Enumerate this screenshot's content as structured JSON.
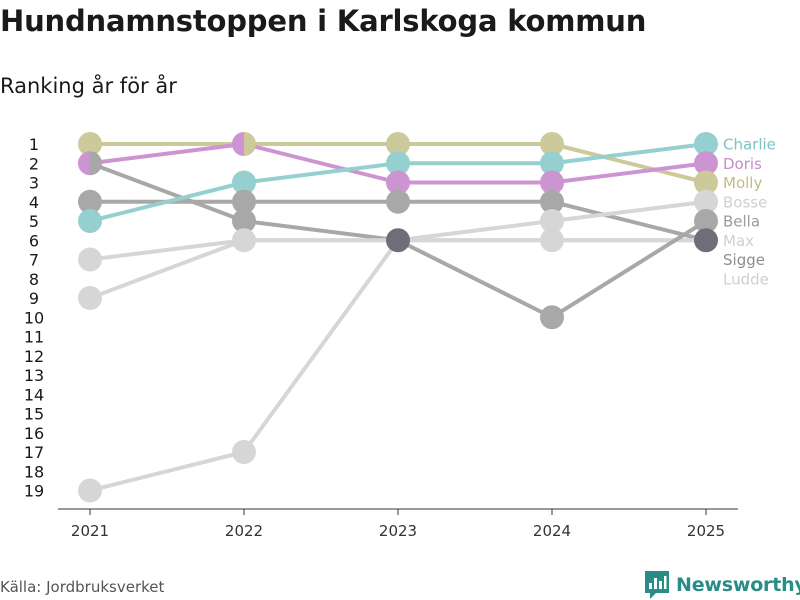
{
  "title": "Hundnamnstoppen i Karlskoga kommun",
  "subtitle": "Ranking år för år",
  "source": "Källa: Jordbruksverket",
  "brand": {
    "name": "Newsworthy",
    "icon": "newsworthy-logo-icon",
    "color": "#2a8c86"
  },
  "chart_data": {
    "type": "line",
    "chart_style": "bump chart (rank over time, rank 1 at top)",
    "title": "Hundnamnstoppen i Karlskoga kommun",
    "subtitle": "Ranking år för år",
    "x": [
      2021,
      2022,
      2023,
      2024,
      2025
    ],
    "xlabel": "",
    "ylabel": "",
    "y_axis_reversed": true,
    "y_ticks": [
      1,
      2,
      3,
      4,
      5,
      6,
      7,
      8,
      9,
      10,
      11,
      12,
      13,
      14,
      15,
      16,
      17,
      18,
      19
    ],
    "ylim": [
      1,
      19
    ],
    "grid": false,
    "legend": "direct labels at right end of lines",
    "series": [
      {
        "name": "Charlie",
        "color": "#96cfcf",
        "values": [
          5,
          3,
          2,
          2,
          1
        ]
      },
      {
        "name": "Doris",
        "color": "#cc94d0",
        "values": [
          2,
          1,
          3,
          3,
          2
        ]
      },
      {
        "name": "Molly",
        "color": "#ccc99a",
        "values": [
          1,
          1,
          1,
          1,
          3
        ]
      },
      {
        "name": "Bosse",
        "color": "#d6d6d6",
        "values": [
          7,
          6,
          6,
          5,
          4
        ]
      },
      {
        "name": "Bella",
        "color": "#a8a8a8",
        "values": [
          2,
          5,
          6,
          10,
          5
        ]
      },
      {
        "name": "Max",
        "color": "#d6d6d6",
        "values": [
          19,
          17,
          6,
          6,
          6
        ]
      },
      {
        "name": "Sigge",
        "color": "#a8a8a8",
        "values": [
          4,
          4,
          4,
          4,
          6
        ]
      },
      {
        "name": "Ludde",
        "color": "#d6d6d6",
        "values": [
          9,
          6,
          6,
          6,
          6
        ]
      }
    ],
    "series_label_colors": {
      "Charlie": "#7cc3c3",
      "Doris": "#c48dca",
      "Molly": "#c1bd7e",
      "Bosse": "#cfcfcf",
      "Bella": "#9a9a9a",
      "Max": "#cfcfcf",
      "Sigge": "#8f8f8f",
      "Ludde": "#cfcfcf"
    },
    "overlap_color": "#6e6e78"
  }
}
